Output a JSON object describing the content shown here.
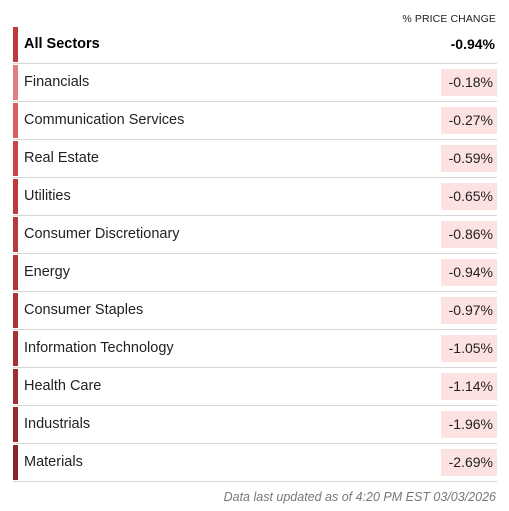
{
  "header": {
    "column_label": "% PRICE CHANGE"
  },
  "total": {
    "name": "All Sectors",
    "change": "-0.94%",
    "bar_color": "#c0393b"
  },
  "sectors": [
    {
      "name": "Financials",
      "change": "-0.18%",
      "bar_color": "#e07f80",
      "bg_color": "#fde2e2"
    },
    {
      "name": "Communication Services",
      "change": "-0.27%",
      "bar_color": "#d95f61",
      "bg_color": "#fde2e2"
    },
    {
      "name": "Real Estate",
      "change": "-0.59%",
      "bar_color": "#c84548",
      "bg_color": "#fde2e2"
    },
    {
      "name": "Utilities",
      "change": "-0.65%",
      "bar_color": "#c0393b",
      "bg_color": "#fde2e2"
    },
    {
      "name": "Consumer Discretionary",
      "change": "-0.86%",
      "bar_color": "#b73a3c",
      "bg_color": "#fde2e2"
    },
    {
      "name": "Energy",
      "change": "-0.94%",
      "bar_color": "#b23537",
      "bg_color": "#fde2e2"
    },
    {
      "name": "Consumer Staples",
      "change": "-0.97%",
      "bar_color": "#ad3335",
      "bg_color": "#fde2e2"
    },
    {
      "name": "Information Technology",
      "change": "-1.05%",
      "bar_color": "#a63032",
      "bg_color": "#fde2e2"
    },
    {
      "name": "Health Care",
      "change": "-1.14%",
      "bar_color": "#a02d2f",
      "bg_color": "#fde2e2"
    },
    {
      "name": "Industrials",
      "change": "-1.96%",
      "bar_color": "#952a2c",
      "bg_color": "#fde2e2"
    },
    {
      "name": "Materials",
      "change": "-2.69%",
      "bar_color": "#8a2628",
      "bg_color": "#fde2e2"
    }
  ],
  "footer": {
    "text": "Data last updated as of 4:20 PM EST 03/03/2026"
  }
}
